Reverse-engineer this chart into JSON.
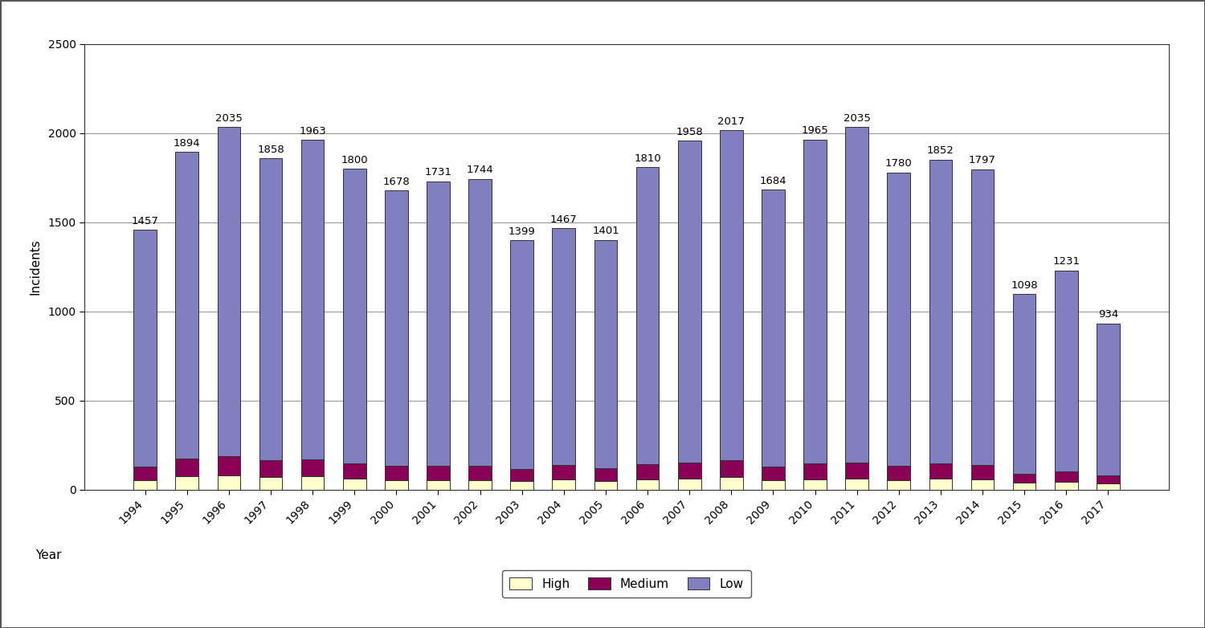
{
  "years": [
    1994,
    1995,
    1996,
    1997,
    1998,
    1999,
    2000,
    2001,
    2002,
    2003,
    2004,
    2005,
    2006,
    2007,
    2008,
    2009,
    2010,
    2011,
    2012,
    2013,
    2014,
    2015,
    2016,
    2017
  ],
  "totals": [
    1457,
    1894,
    2035,
    1858,
    1963,
    1800,
    1678,
    1731,
    1744,
    1399,
    1467,
    1401,
    1810,
    1958,
    2017,
    1684,
    1965,
    2035,
    1780,
    1852,
    1797,
    1098,
    1231,
    934
  ],
  "high": [
    55,
    75,
    80,
    70,
    75,
    65,
    55,
    55,
    55,
    50,
    60,
    50,
    60,
    65,
    70,
    55,
    60,
    65,
    55,
    65,
    60,
    40,
    45,
    35
  ],
  "medium": [
    75,
    100,
    110,
    95,
    95,
    85,
    80,
    80,
    80,
    65,
    80,
    70,
    85,
    90,
    95,
    75,
    90,
    90,
    80,
    85,
    80,
    50,
    58,
    45
  ],
  "color_high": "#ffffcc",
  "color_medium": "#8b0057",
  "color_low": "#8080c0",
  "bar_edge_color": "#333333",
  "bar_edge_width": 0.7,
  "ylim": [
    0,
    2500
  ],
  "yticks": [
    0,
    500,
    1000,
    1500,
    2000,
    2500
  ],
  "ylabel": "Incidents",
  "xlabel": "Year",
  "legend_labels": [
    "High",
    "Medium",
    "Low"
  ],
  "background_color": "#ffffff",
  "grid_color": "#999999",
  "label_fontsize": 11,
  "tick_fontsize": 10,
  "annotation_fontsize": 9.5,
  "outer_border_color": "#555555"
}
